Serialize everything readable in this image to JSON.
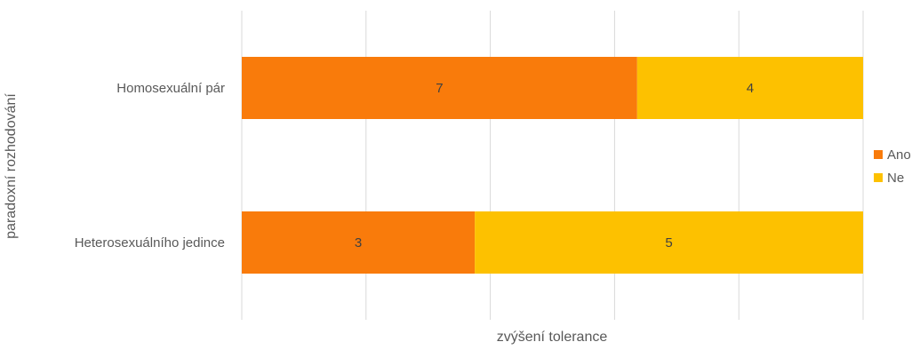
{
  "chart_data": {
    "type": "bar",
    "orientation": "horizontal",
    "stacked": true,
    "title": "",
    "xlabel": "zvýšení tolerance",
    "ylabel": "paradoxní rozhodování",
    "categories": [
      "Homosexuální pár",
      "Heterosexuálního jedince"
    ],
    "series": [
      {
        "name": "Ano",
        "values": [
          7,
          3
        ],
        "color": "#F97B0B"
      },
      {
        "name": "Ne",
        "values": [
          4,
          5
        ],
        "color": "#FDC100"
      }
    ],
    "normalized_to_total": true,
    "grid": true,
    "legend_position": "right"
  }
}
